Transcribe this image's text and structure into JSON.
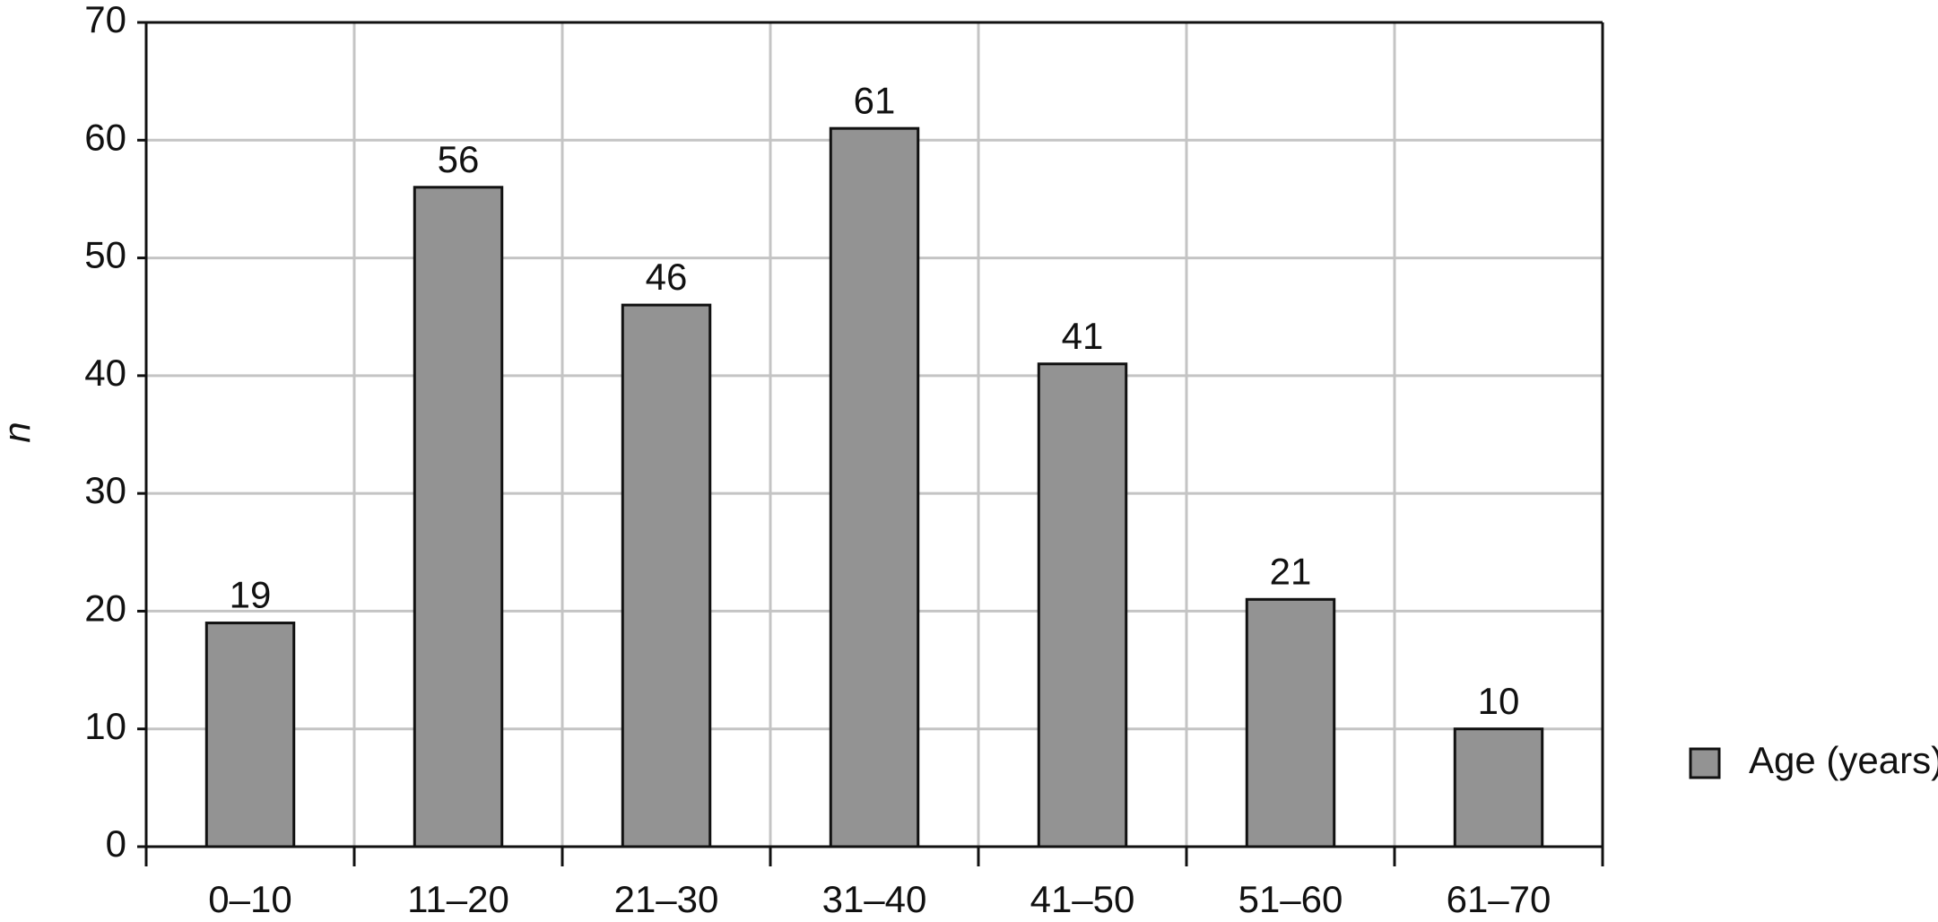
{
  "chart_data": {
    "type": "bar",
    "y_label": "n",
    "categories": [
      "0–10",
      "11–20",
      "21–30",
      "31–40",
      "41–50",
      "51–60",
      "61–70"
    ],
    "series": [
      {
        "name": "Age (years)",
        "color": "#939393",
        "values": [
          19,
          56,
          46,
          61,
          41,
          21,
          10
        ]
      }
    ],
    "ylim": [
      0,
      70
    ],
    "yticks": [
      0,
      10,
      20,
      30,
      40,
      50,
      60,
      70
    ],
    "grid": true,
    "legend": "right"
  }
}
